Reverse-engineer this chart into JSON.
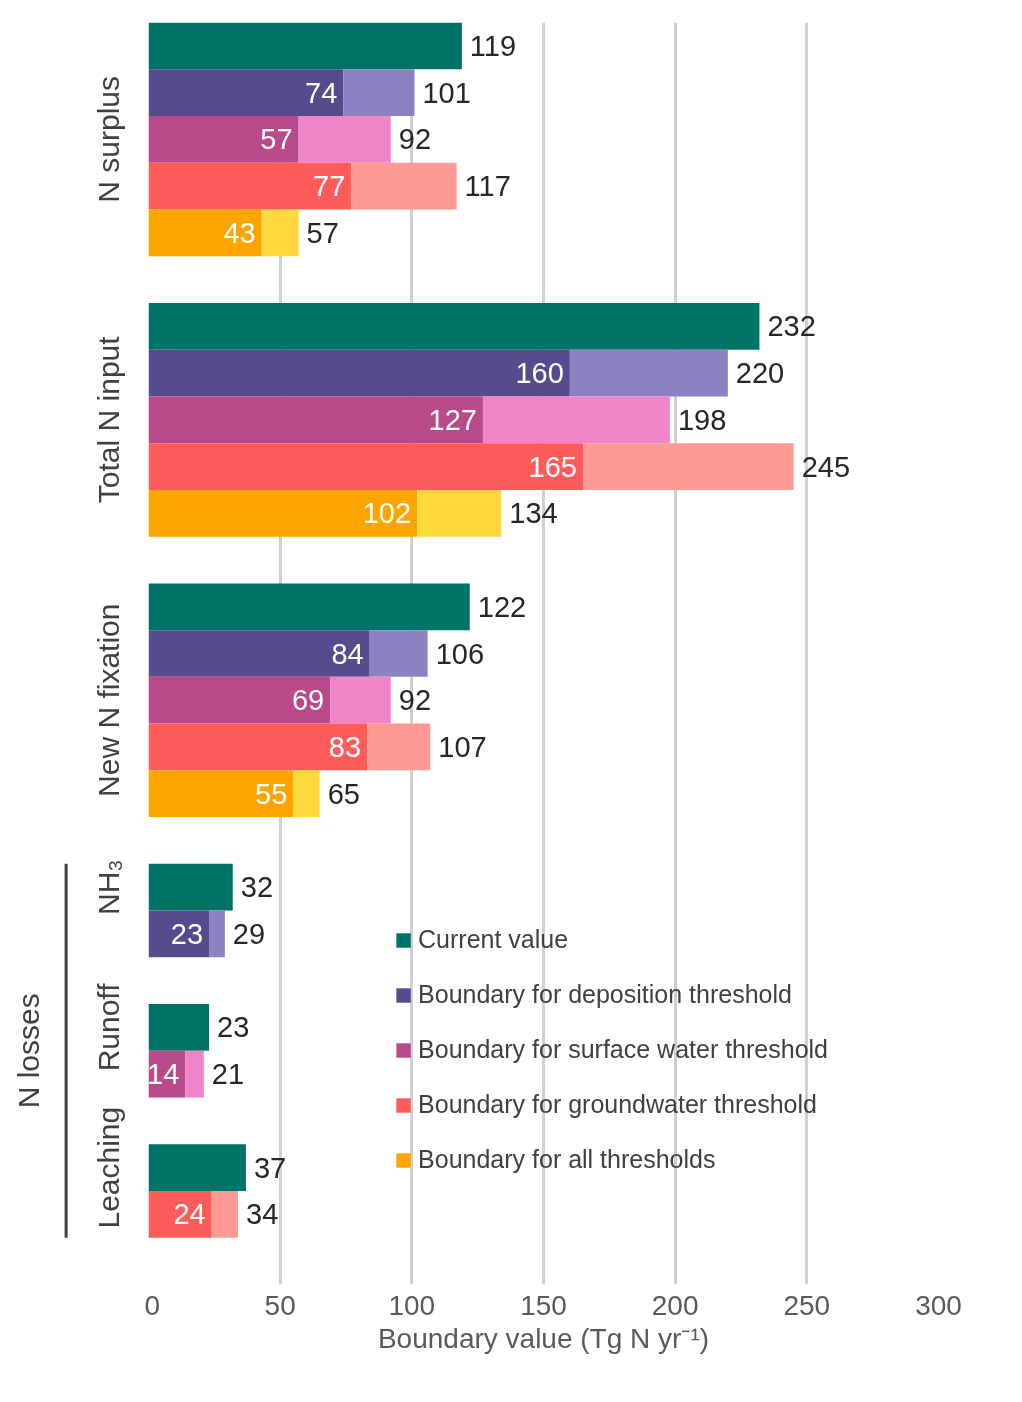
{
  "chart_data": {
    "type": "bar",
    "orientation": "horizontal",
    "stacked": true,
    "categories": [
      null,
      null,
      "N surplus",
      null,
      null,
      null,
      null,
      null,
      "Total N input",
      null,
      null,
      null,
      null,
      null,
      "New N fixation",
      null,
      null,
      null,
      "NH₃",
      null,
      null,
      "Runoff",
      null,
      null,
      "Leaching",
      null,
      null
    ],
    "series": [
      {
        "name": "Current value",
        "color": "#007367",
        "values": [
          119,
          null,
          null,
          null,
          null,
          null,
          232,
          null,
          null,
          null,
          null,
          null,
          122,
          null,
          null,
          null,
          null,
          null,
          32,
          null,
          null,
          23,
          null,
          null,
          37,
          null,
          null
        ],
        "value_labels": [
          "119",
          null,
          null,
          null,
          null,
          null,
          "232",
          null,
          null,
          null,
          null,
          null,
          "122",
          null,
          null,
          null,
          null,
          null,
          "32",
          null,
          null,
          "23",
          null,
          null,
          "37",
          null,
          null
        ]
      },
      {
        "name": "Boundary for deposition threshold",
        "color": "#574b8e",
        "values": [
          null,
          74,
          null,
          null,
          null,
          null,
          null,
          160,
          null,
          null,
          null,
          null,
          null,
          84,
          null,
          null,
          null,
          null,
          null,
          23,
          null,
          null,
          null,
          null,
          null,
          null,
          null
        ],
        "value_labels": [
          null,
          "74",
          null,
          null,
          null,
          null,
          null,
          "160",
          null,
          null,
          null,
          null,
          null,
          "84",
          null,
          null,
          null,
          null,
          null,
          "23",
          null,
          null,
          null,
          null,
          null,
          null,
          null
        ]
      },
      {
        "color": "#8c82c0",
        "values": [
          null,
          27,
          null,
          null,
          null,
          null,
          null,
          60,
          null,
          null,
          null,
          null,
          null,
          22,
          null,
          null,
          null,
          null,
          null,
          6,
          null,
          null,
          null,
          null,
          null,
          null,
          null
        ]
      },
      {
        "name": "Boundary for surface water threshold",
        "color": "#b84a8a",
        "values": [
          null,
          null,
          57,
          null,
          null,
          null,
          null,
          null,
          127,
          null,
          null,
          null,
          null,
          null,
          69,
          null,
          null,
          null,
          null,
          null,
          null,
          null,
          14,
          null,
          null,
          null,
          null
        ],
        "value_labels": [
          null,
          null,
          "57",
          null,
          null,
          null,
          null,
          null,
          "127",
          null,
          null,
          null,
          null,
          null,
          "69",
          null,
          null,
          null,
          null,
          null,
          null,
          null,
          "14",
          null,
          null,
          null,
          null
        ]
      },
      {
        "color": "#ef85c8",
        "values": [
          null,
          null,
          35,
          null,
          null,
          null,
          null,
          null,
          71,
          null,
          null,
          null,
          null,
          null,
          23,
          null,
          null,
          null,
          null,
          null,
          null,
          null,
          7,
          null,
          null,
          null,
          null
        ]
      },
      {
        "name": "Boundary for groundwater threshold",
        "color": "#fe5b5b",
        "values": [
          null,
          null,
          null,
          77,
          null,
          null,
          null,
          null,
          null,
          165,
          null,
          null,
          null,
          null,
          null,
          83,
          null,
          null,
          null,
          null,
          null,
          null,
          null,
          null,
          null,
          24,
          null
        ],
        "value_labels": [
          null,
          null,
          null,
          "77",
          null,
          null,
          null,
          null,
          null,
          "165",
          null,
          null,
          null,
          null,
          null,
          "83",
          null,
          null,
          null,
          null,
          null,
          null,
          null,
          null,
          null,
          "24",
          null
        ]
      },
      {
        "color": "#fe9a94",
        "values": [
          null,
          null,
          null,
          40,
          null,
          null,
          null,
          null,
          null,
          80,
          null,
          null,
          null,
          null,
          null,
          24,
          null,
          null,
          null,
          null,
          null,
          null,
          null,
          null,
          null,
          10,
          null
        ]
      },
      {
        "name": "Boundary for all thresholds",
        "color": "#ffa500",
        "values": [
          null,
          null,
          null,
          null,
          43,
          null,
          null,
          null,
          null,
          null,
          102,
          null,
          null,
          null,
          null,
          null,
          55,
          null,
          null,
          null,
          null,
          null,
          null,
          null,
          null,
          null,
          null
        ],
        "value_labels": [
          null,
          null,
          null,
          null,
          "43",
          null,
          null,
          null,
          null,
          null,
          "102",
          null,
          null,
          null,
          null,
          null,
          "55",
          null,
          null,
          null,
          null,
          null,
          null,
          null,
          null,
          null,
          null
        ]
      },
      {
        "color": "#ffd83d",
        "values": [
          null,
          null,
          null,
          null,
          14,
          null,
          null,
          null,
          null,
          null,
          32,
          null,
          null,
          null,
          null,
          null,
          10,
          null,
          null,
          null,
          null,
          null,
          null,
          null,
          null,
          null,
          null
        ]
      }
    ],
    "totals": [
      null,
      "101",
      "92",
      "117",
      "57",
      null,
      null,
      "220",
      "198",
      "245",
      "134",
      null,
      null,
      "106",
      "92",
      "107",
      "65",
      null,
      null,
      "29",
      null,
      null,
      "21",
      null,
      null,
      "34",
      null
    ],
    "xlim": [
      0,
      300
    ],
    "xticks": [
      0,
      50,
      100,
      150,
      200,
      250,
      300
    ],
    "xlabel": "Boundary value (Tg N yr⁻¹)",
    "grid": "x",
    "legend": "bottom right",
    "annotations": [
      "N losses"
    ]
  }
}
